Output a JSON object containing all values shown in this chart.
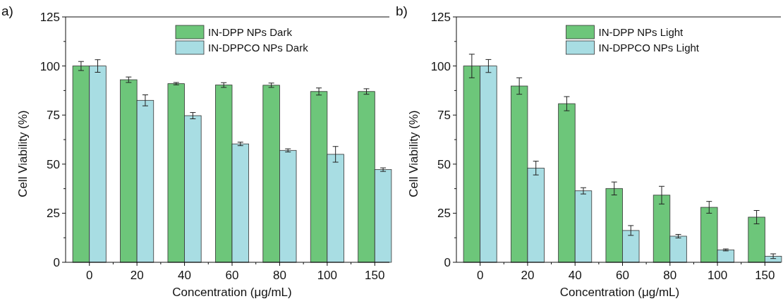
{
  "chart_data": [
    {
      "type": "bar",
      "title": "a)",
      "xlabel": "Concentration (μg/mL)",
      "ylabel": "Cell Viability (%)",
      "categories": [
        "0",
        "20",
        "40",
        "60",
        "80",
        "100",
        "150"
      ],
      "ylim": [
        0,
        125
      ],
      "yticks": [
        0,
        25,
        50,
        75,
        100,
        125
      ],
      "legend": "top",
      "series": [
        {
          "name": "IN-DPP NPs Dark",
          "color": "#6dc67a",
          "values": [
            100,
            93,
            91,
            90.3,
            90.2,
            87,
            87
          ],
          "errors": [
            2.3,
            1.4,
            0.6,
            1.2,
            1.1,
            1.8,
            1.4
          ]
        },
        {
          "name": "IN-DPPCO NPs Dark",
          "color": "#a8dde3",
          "values": [
            100,
            82.5,
            74.7,
            60.3,
            57,
            55,
            47.2
          ],
          "errors": [
            3.2,
            2.8,
            1.6,
            0.9,
            0.8,
            4,
            0.9
          ]
        }
      ]
    },
    {
      "type": "bar",
      "title": "b)",
      "xlabel": "Concentration (μg/mL)",
      "ylabel": "Cell Viability (%)",
      "categories": [
        "0",
        "20",
        "40",
        "60",
        "80",
        "100",
        "150"
      ],
      "ylim": [
        0,
        125
      ],
      "yticks": [
        0,
        25,
        50,
        75,
        100,
        125
      ],
      "legend": "top",
      "series": [
        {
          "name": "IN-DPP NPs Light",
          "color": "#6dc67a",
          "values": [
            100,
            89.8,
            80.8,
            37.6,
            34.2,
            28,
            23
          ],
          "errors": [
            6,
            4.2,
            3.6,
            3.3,
            4.5,
            3,
            3.4
          ]
        },
        {
          "name": "IN-DPPCO NPs Light",
          "color": "#a8dde3",
          "values": [
            100,
            48,
            36.4,
            16.2,
            13.3,
            6.3,
            3.1
          ],
          "errors": [
            3.3,
            3.5,
            1.6,
            2.5,
            0.9,
            0.5,
            1.2
          ]
        }
      ]
    }
  ]
}
